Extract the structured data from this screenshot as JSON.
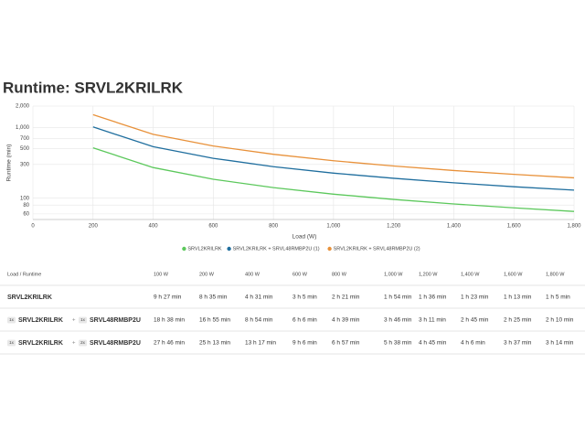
{
  "chart_data": {
    "type": "line",
    "title": "Runtime: SRVL2KRILRK",
    "x_label": "Load (W)",
    "y_label": "Runtime (min)",
    "x": [
      200,
      400,
      600,
      800,
      1000,
      1200,
      1400,
      1600,
      1800
    ],
    "series": [
      {
        "name": "SRVL2KRILRK",
        "color": "#5cc85c",
        "values": [
          515,
          271,
          185,
          141,
          114,
          96,
          83,
          73,
          65
        ]
      },
      {
        "name": "SRVL2KRILRK + SRVL48RMBP2U (1)",
        "color": "#1f6e9e",
        "values": [
          1015,
          534,
          366,
          279,
          226,
          191,
          165,
          145,
          130
        ]
      },
      {
        "name": "SRVL2KRILRK + SRVL48RMBP2U (2)",
        "color": "#e8913a",
        "values": [
          1513,
          797,
          546,
          417,
          338,
          285,
          246,
          217,
          194
        ]
      }
    ],
    "xlim": [
      0,
      1800
    ],
    "xticks": [
      0,
      200,
      400,
      600,
      800,
      {
        "value": 1000,
        "label": "1,000"
      },
      {
        "value": 1200,
        "label": "1,200"
      },
      {
        "value": 1400,
        "label": "1,400"
      },
      {
        "value": 1600,
        "label": "1,600"
      },
      {
        "value": 1800,
        "label": "1,800"
      }
    ],
    "ylim": [
      50,
      2000
    ],
    "yticks": [
      {
        "value": 2000,
        "label": "2,000"
      },
      {
        "value": 1000,
        "label": "1,000"
      },
      700,
      500,
      300,
      100,
      80,
      60
    ],
    "log_y": true,
    "grid": true,
    "legend": "bottom"
  },
  "table": {
    "corner": "Load / Runtime",
    "joiner": "+",
    "columns": [
      "100 W",
      "200 W",
      "400 W",
      "600 W",
      "800 W",
      "1,000 W",
      "1,200 W",
      "1,400 W",
      "1,600 W",
      "1,800 W"
    ],
    "rows": [
      {
        "parts": [
          {
            "name": "SRVL2KRILRK"
          }
        ],
        "cells": [
          "9 h 27 min",
          "8 h 35 min",
          "4 h 31 min",
          "3 h 5 min",
          "2 h 21 min",
          "1 h 54 min",
          "1 h 36 min",
          "1 h 23 min",
          "1 h 13 min",
          "1 h 5 min"
        ]
      },
      {
        "parts": [
          {
            "qty": "1x",
            "name": "SRVL2KRILRK"
          },
          {
            "qty": "1x",
            "name": "SRVL48RMBP2U"
          }
        ],
        "cells": [
          "18 h 38 min",
          "16 h 55 min",
          "8 h 54 min",
          "6 h 6 min",
          "4 h 39 min",
          "3 h 46 min",
          "3 h 11 min",
          "2 h 45 min",
          "2 h 25 min",
          "2 h 10 min"
        ]
      },
      {
        "parts": [
          {
            "qty": "1x",
            "name": "SRVL2KRILRK"
          },
          {
            "qty": "2x",
            "name": "SRVL48RMBP2U"
          }
        ],
        "cells": [
          "27 h 46 min",
          "25 h 13 min",
          "13 h 17 min",
          "9 h 6 min",
          "6 h 57 min",
          "5 h 38 min",
          "4 h 45 min",
          "4 h 6 min",
          "3 h 37 min",
          "3 h 14 min"
        ]
      }
    ]
  }
}
